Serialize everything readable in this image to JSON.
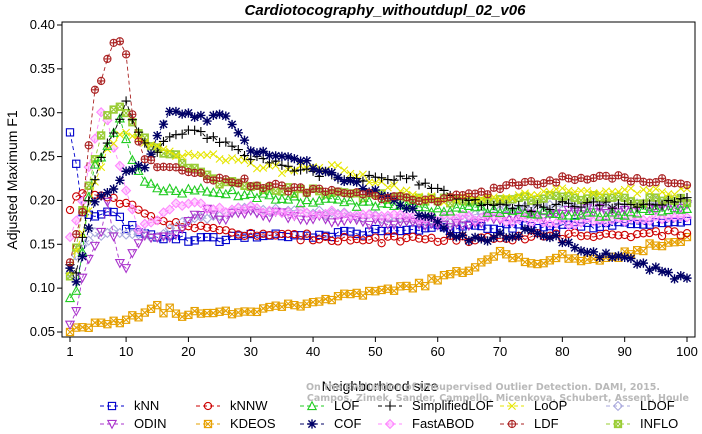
{
  "chart_data": {
    "type": "line",
    "title": "Cardiotocography_withoutdupl_02_v06",
    "xlabel": "Neighborhood size",
    "ylabel": "Adjusted Maximum F1",
    "xlim": [
      1,
      100
    ],
    "ylim": [
      0.05,
      0.4
    ],
    "xticks": [
      1,
      10,
      20,
      30,
      40,
      50,
      60,
      70,
      80,
      90,
      100
    ],
    "yticks": [
      0.05,
      0.1,
      0.15,
      0.2,
      0.25,
      0.3,
      0.35,
      0.4
    ],
    "xtick_labels": [
      "1",
      "10",
      "20",
      "30",
      "40",
      "50",
      "60",
      "70",
      "80",
      "90",
      "100"
    ],
    "ytick_labels": [
      "0.05",
      "0.10",
      "0.15",
      "0.20",
      "0.25",
      "0.30",
      "0.35",
      "0.40"
    ],
    "credit": [
      "Campos, Zimek, Sander, Campello, Micenkova, Schubert, Assent, Houle",
      "On the Evaluation of Unsupervised Outlier Detection. DAMI, 2015."
    ],
    "legend_position": "bottom",
    "series": [
      {
        "name": "kNN",
        "color": "#0000cc",
        "marker": "square",
        "knots": [
          [
            1,
            0.275
          ],
          [
            2,
            0.24
          ],
          [
            3,
            0.19
          ],
          [
            5,
            0.18
          ],
          [
            8,
            0.185
          ],
          [
            10,
            0.17
          ],
          [
            15,
            0.16
          ],
          [
            20,
            0.155
          ],
          [
            25,
            0.155
          ],
          [
            30,
            0.16
          ],
          [
            40,
            0.16
          ],
          [
            50,
            0.165
          ],
          [
            60,
            0.168
          ],
          [
            70,
            0.17
          ],
          [
            80,
            0.172
          ],
          [
            90,
            0.172
          ],
          [
            100,
            0.175
          ]
        ]
      },
      {
        "name": "kNNW",
        "color": "#cc0000",
        "marker": "circle",
        "knots": [
          [
            1,
            0.188
          ],
          [
            2,
            0.205
          ],
          [
            4,
            0.215
          ],
          [
            6,
            0.205
          ],
          [
            10,
            0.195
          ],
          [
            15,
            0.18
          ],
          [
            20,
            0.17
          ],
          [
            25,
            0.165
          ],
          [
            30,
            0.16
          ],
          [
            40,
            0.158
          ],
          [
            50,
            0.155
          ],
          [
            60,
            0.155
          ],
          [
            70,
            0.158
          ],
          [
            80,
            0.16
          ],
          [
            90,
            0.162
          ],
          [
            100,
            0.162
          ]
        ]
      },
      {
        "name": "LOF",
        "color": "#22cc22",
        "marker": "triangle-up",
        "knots": [
          [
            1,
            0.085
          ],
          [
            2,
            0.1
          ],
          [
            3,
            0.14
          ],
          [
            4,
            0.2
          ],
          [
            5,
            0.24
          ],
          [
            7,
            0.26
          ],
          [
            9,
            0.29
          ],
          [
            11,
            0.25
          ],
          [
            13,
            0.22
          ],
          [
            15,
            0.215
          ],
          [
            20,
            0.21
          ],
          [
            25,
            0.21
          ],
          [
            30,
            0.205
          ],
          [
            40,
            0.2
          ],
          [
            50,
            0.195
          ],
          [
            60,
            0.19
          ],
          [
            70,
            0.19
          ],
          [
            80,
            0.185
          ],
          [
            90,
            0.185
          ],
          [
            100,
            0.19
          ]
        ]
      },
      {
        "name": "SimplifiedLOF",
        "color": "#000000",
        "marker": "plus",
        "knots": [
          [
            1,
            0.13
          ],
          [
            2,
            0.12
          ],
          [
            4,
            0.2
          ],
          [
            6,
            0.25
          ],
          [
            8,
            0.28
          ],
          [
            10,
            0.31
          ],
          [
            12,
            0.28
          ],
          [
            14,
            0.25
          ],
          [
            17,
            0.27
          ],
          [
            20,
            0.28
          ],
          [
            25,
            0.27
          ],
          [
            30,
            0.25
          ],
          [
            35,
            0.24
          ],
          [
            40,
            0.23
          ],
          [
            50,
            0.225
          ],
          [
            55,
            0.228
          ],
          [
            60,
            0.21
          ],
          [
            65,
            0.2
          ],
          [
            70,
            0.195
          ],
          [
            75,
            0.19
          ],
          [
            80,
            0.195
          ],
          [
            90,
            0.195
          ],
          [
            100,
            0.2
          ]
        ]
      },
      {
        "name": "LoOP",
        "color": "#e6e600",
        "marker": "cross",
        "knots": [
          [
            1,
            0.12
          ],
          [
            3,
            0.16
          ],
          [
            5,
            0.22
          ],
          [
            7,
            0.26
          ],
          [
            10,
            0.28
          ],
          [
            15,
            0.26
          ],
          [
            20,
            0.25
          ],
          [
            25,
            0.25
          ],
          [
            30,
            0.24
          ],
          [
            35,
            0.235
          ],
          [
            40,
            0.24
          ],
          [
            45,
            0.235
          ],
          [
            50,
            0.22
          ],
          [
            55,
            0.21
          ],
          [
            60,
            0.2
          ],
          [
            70,
            0.205
          ],
          [
            80,
            0.21
          ],
          [
            90,
            0.21
          ],
          [
            100,
            0.21
          ]
        ]
      },
      {
        "name": "LDOF",
        "color": "#aaaadd",
        "marker": "diamond",
        "knots": [
          [
            1,
            0.12
          ],
          [
            3,
            0.15
          ],
          [
            5,
            0.16
          ],
          [
            8,
            0.17
          ],
          [
            10,
            0.16
          ],
          [
            15,
            0.16
          ],
          [
            20,
            0.18
          ],
          [
            25,
            0.185
          ],
          [
            30,
            0.19
          ],
          [
            40,
            0.185
          ],
          [
            50,
            0.18
          ],
          [
            60,
            0.175
          ],
          [
            70,
            0.19
          ],
          [
            80,
            0.195
          ],
          [
            90,
            0.195
          ],
          [
            100,
            0.2
          ]
        ]
      },
      {
        "name": "ODIN",
        "color": "#aa33cc",
        "marker": "triangle-down",
        "knots": [
          [
            1,
            0.055
          ],
          [
            2,
            0.075
          ],
          [
            3,
            0.11
          ],
          [
            4,
            0.13
          ],
          [
            6,
            0.16
          ],
          [
            7,
            0.2
          ],
          [
            8,
            0.16
          ],
          [
            9,
            0.13
          ],
          [
            10,
            0.12
          ],
          [
            11,
            0.14
          ],
          [
            13,
            0.16
          ],
          [
            15,
            0.155
          ],
          [
            18,
            0.16
          ],
          [
            20,
            0.175
          ],
          [
            23,
            0.19
          ],
          [
            25,
            0.18
          ],
          [
            30,
            0.185
          ],
          [
            40,
            0.18
          ],
          [
            50,
            0.175
          ],
          [
            60,
            0.17
          ],
          [
            70,
            0.18
          ],
          [
            80,
            0.185
          ],
          [
            90,
            0.19
          ],
          [
            100,
            0.195
          ]
        ]
      },
      {
        "name": "KDEOS",
        "color": "#e6a000",
        "marker": "square-x",
        "knots": [
          [
            1,
            0.05
          ],
          [
            3,
            0.055
          ],
          [
            5,
            0.06
          ],
          [
            10,
            0.065
          ],
          [
            12,
            0.07
          ],
          [
            14,
            0.08
          ],
          [
            16,
            0.075
          ],
          [
            20,
            0.07
          ],
          [
            25,
            0.072
          ],
          [
            30,
            0.075
          ],
          [
            35,
            0.08
          ],
          [
            40,
            0.085
          ],
          [
            45,
            0.09
          ],
          [
            50,
            0.095
          ],
          [
            55,
            0.1
          ],
          [
            60,
            0.11
          ],
          [
            65,
            0.12
          ],
          [
            70,
            0.14
          ],
          [
            75,
            0.13
          ],
          [
            80,
            0.135
          ],
          [
            85,
            0.13
          ],
          [
            90,
            0.14
          ],
          [
            95,
            0.15
          ],
          [
            100,
            0.155
          ]
        ]
      },
      {
        "name": "COF",
        "color": "#000066",
        "marker": "asterisk",
        "knots": [
          [
            1,
            0.12
          ],
          [
            2,
            0.11
          ],
          [
            3,
            0.14
          ],
          [
            5,
            0.2
          ],
          [
            7,
            0.21
          ],
          [
            10,
            0.23
          ],
          [
            13,
            0.24
          ],
          [
            15,
            0.27
          ],
          [
            17,
            0.3
          ],
          [
            20,
            0.3
          ],
          [
            23,
            0.29
          ],
          [
            26,
            0.3
          ],
          [
            30,
            0.26
          ],
          [
            35,
            0.25
          ],
          [
            40,
            0.24
          ],
          [
            45,
            0.225
          ],
          [
            50,
            0.21
          ],
          [
            55,
            0.19
          ],
          [
            60,
            0.175
          ],
          [
            63,
            0.16
          ],
          [
            66,
            0.155
          ],
          [
            70,
            0.16
          ],
          [
            75,
            0.165
          ],
          [
            80,
            0.155
          ],
          [
            85,
            0.14
          ],
          [
            90,
            0.135
          ],
          [
            95,
            0.12
          ],
          [
            100,
            0.11
          ]
        ]
      },
      {
        "name": "FastABOD",
        "color": "#ff88ff",
        "marker": "diamond-filled",
        "knots": [
          [
            1,
            0.16
          ],
          [
            3,
            0.2
          ],
          [
            5,
            0.27
          ],
          [
            6,
            0.3
          ],
          [
            7,
            0.29
          ],
          [
            10,
            0.21
          ],
          [
            12,
            0.17
          ],
          [
            15,
            0.18
          ],
          [
            18,
            0.2
          ],
          [
            20,
            0.195
          ],
          [
            25,
            0.19
          ],
          [
            30,
            0.19
          ],
          [
            40,
            0.185
          ],
          [
            50,
            0.185
          ],
          [
            60,
            0.18
          ],
          [
            70,
            0.18
          ],
          [
            80,
            0.175
          ],
          [
            90,
            0.18
          ],
          [
            100,
            0.18
          ]
        ]
      },
      {
        "name": "LDF",
        "color": "#aa2222",
        "marker": "circle-plus",
        "knots": [
          [
            1,
            0.13
          ],
          [
            3,
            0.19
          ],
          [
            4,
            0.26
          ],
          [
            5,
            0.33
          ],
          [
            6,
            0.34
          ],
          [
            7,
            0.36
          ],
          [
            8,
            0.38
          ],
          [
            9,
            0.38
          ],
          [
            10,
            0.37
          ],
          [
            11,
            0.3
          ],
          [
            12,
            0.27
          ],
          [
            13,
            0.25
          ],
          [
            15,
            0.24
          ],
          [
            20,
            0.23
          ],
          [
            25,
            0.225
          ],
          [
            30,
            0.22
          ],
          [
            40,
            0.21
          ],
          [
            50,
            0.205
          ],
          [
            60,
            0.2
          ],
          [
            65,
            0.205
          ],
          [
            70,
            0.215
          ],
          [
            75,
            0.22
          ],
          [
            80,
            0.225
          ],
          [
            90,
            0.225
          ],
          [
            100,
            0.22
          ]
        ]
      },
      {
        "name": "INFLO",
        "color": "#99cc33",
        "marker": "square-cross",
        "knots": [
          [
            1,
            0.11
          ],
          [
            3,
            0.19
          ],
          [
            5,
            0.25
          ],
          [
            7,
            0.3
          ],
          [
            9,
            0.31
          ],
          [
            11,
            0.29
          ],
          [
            13,
            0.27
          ],
          [
            15,
            0.26
          ],
          [
            18,
            0.25
          ],
          [
            20,
            0.24
          ],
          [
            25,
            0.22
          ],
          [
            30,
            0.215
          ],
          [
            40,
            0.21
          ],
          [
            50,
            0.205
          ],
          [
            55,
            0.2
          ],
          [
            60,
            0.2
          ],
          [
            70,
            0.2
          ],
          [
            80,
            0.205
          ],
          [
            90,
            0.2
          ],
          [
            100,
            0.2
          ]
        ]
      }
    ]
  }
}
